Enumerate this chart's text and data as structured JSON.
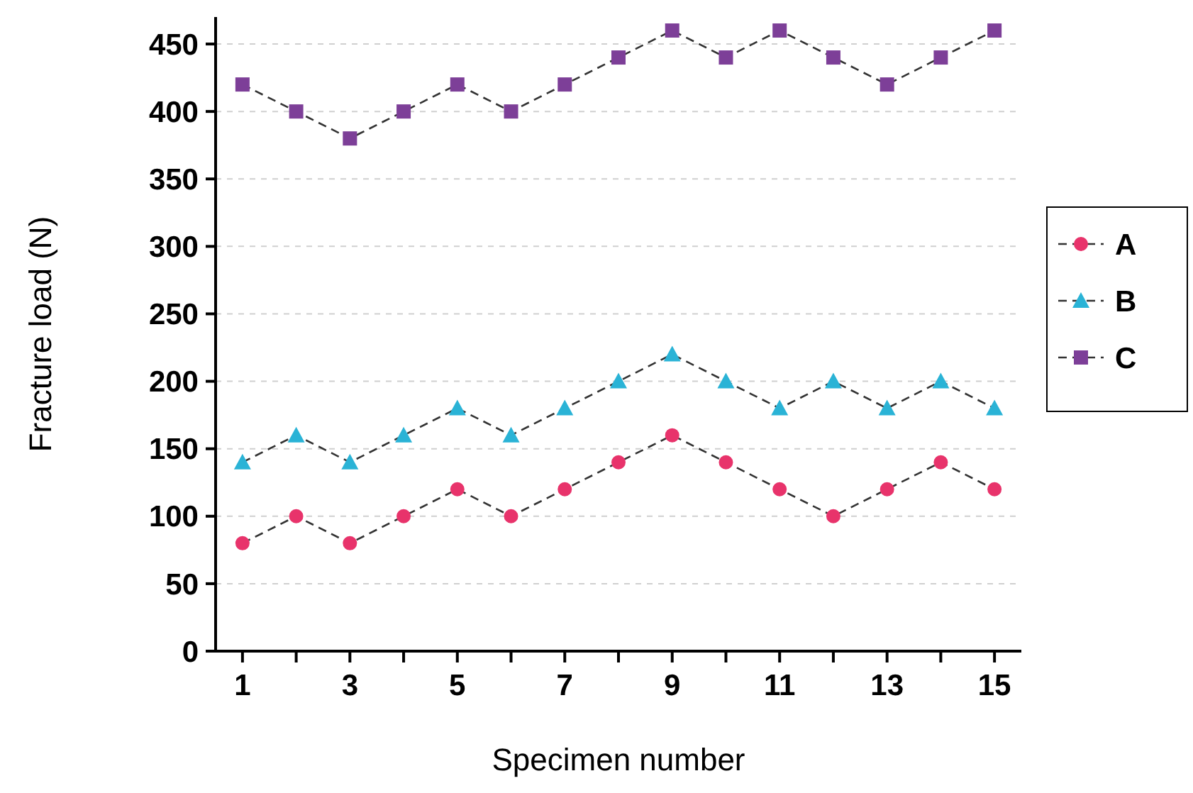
{
  "chart_data": {
    "type": "line",
    "xlabel": "Specimen number",
    "ylabel": "Fracture load (N)",
    "x": [
      1,
      2,
      3,
      4,
      5,
      6,
      7,
      8,
      9,
      10,
      11,
      12,
      13,
      14,
      15
    ],
    "series": [
      {
        "name": "A",
        "color": "#e8336b",
        "marker": "circle",
        "values": [
          80,
          100,
          80,
          100,
          120,
          100,
          120,
          140,
          160,
          140,
          120,
          100,
          120,
          140,
          120
        ]
      },
      {
        "name": "B",
        "color": "#2ab3d6",
        "marker": "triangle",
        "values": [
          140,
          160,
          140,
          160,
          180,
          160,
          180,
          200,
          220,
          200,
          180,
          200,
          180,
          200,
          180
        ]
      },
      {
        "name": "C",
        "color": "#7d3f98",
        "marker": "square",
        "values": [
          420,
          400,
          380,
          400,
          420,
          400,
          420,
          440,
          460,
          440,
          460,
          440,
          420,
          440,
          460
        ]
      }
    ],
    "xlim": [
      0.5,
      15.5
    ],
    "xticks": [
      1,
      {
        "value": 2,
        "label": null
      },
      3,
      {
        "value": 4,
        "label": null
      },
      5,
      {
        "value": 6,
        "label": null
      },
      7,
      {
        "value": 8,
        "label": null
      },
      9,
      {
        "value": 10,
        "label": null
      },
      11,
      {
        "value": 12,
        "label": null
      },
      13,
      {
        "value": 14,
        "label": null
      },
      15
    ],
    "ylim": [
      0,
      470
    ],
    "yticks": [
      0,
      50,
      100,
      150,
      200,
      250,
      300,
      350,
      400,
      450
    ],
    "grid": "y",
    "line_style": "dashed",
    "legend": "right"
  }
}
